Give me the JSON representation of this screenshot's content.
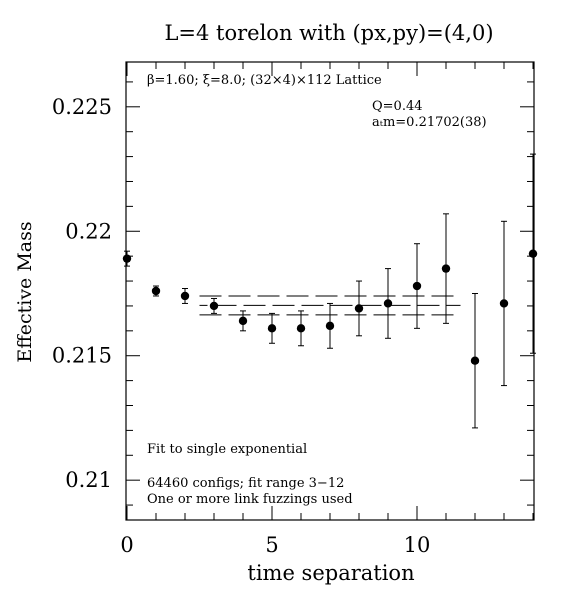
{
  "chart_data": {
    "type": "scatter",
    "title": "L=4 torelon with (px,py)=(4,0)",
    "xlabel": "time separation",
    "ylabel": "Effective Mass",
    "xlim": [
      0,
      14
    ],
    "ylim": [
      0.2084,
      0.2268
    ],
    "x_ticks": [
      0,
      5,
      10
    ],
    "x_tick_labels": [
      "0",
      "5",
      "10"
    ],
    "y_ticks": [
      0.21,
      0.215,
      0.22,
      0.225
    ],
    "y_tick_labels": [
      "0.21",
      "0.215",
      "0.22",
      "0.225"
    ],
    "grid": false,
    "points": [
      {
        "x": 0,
        "y": 0.2189,
        "err": 0.0003
      },
      {
        "x": 1,
        "y": 0.2176,
        "err": 0.0002
      },
      {
        "x": 2,
        "y": 0.2174,
        "err": 0.0003
      },
      {
        "x": 3,
        "y": 0.217,
        "err": 0.0003
      },
      {
        "x": 4,
        "y": 0.2164,
        "err": 0.0004
      },
      {
        "x": 5,
        "y": 0.2161,
        "err": 0.0006
      },
      {
        "x": 6,
        "y": 0.2161,
        "err": 0.0007
      },
      {
        "x": 7,
        "y": 0.2162,
        "err": 0.0009
      },
      {
        "x": 8,
        "y": 0.2169,
        "err": 0.0011
      },
      {
        "x": 9,
        "y": 0.2171,
        "err": 0.0014
      },
      {
        "x": 10,
        "y": 0.2178,
        "err": 0.0017
      },
      {
        "x": 11,
        "y": 0.2185,
        "err": 0.0022
      },
      {
        "x": 12,
        "y": 0.2148,
        "err": 0.0027
      },
      {
        "x": 13,
        "y": 0.2171,
        "err": 0.0033
      },
      {
        "x": 14,
        "y": 0.2191,
        "err": 0.004
      }
    ],
    "fit": {
      "x_range": [
        2.5,
        11.5
      ],
      "center": 0.21702,
      "error": 0.00038
    },
    "annotations": {
      "lattice": "β=1.60; ξ=8.0; (32×4)×112 Lattice",
      "q": "Q=0.44",
      "mass": "aₜm=0.21702(38)",
      "fit_type": "Fit to single exponential",
      "configs": "64460 configs; fit range 3−12",
      "fuzzing": "One or more link fuzzings used"
    }
  }
}
